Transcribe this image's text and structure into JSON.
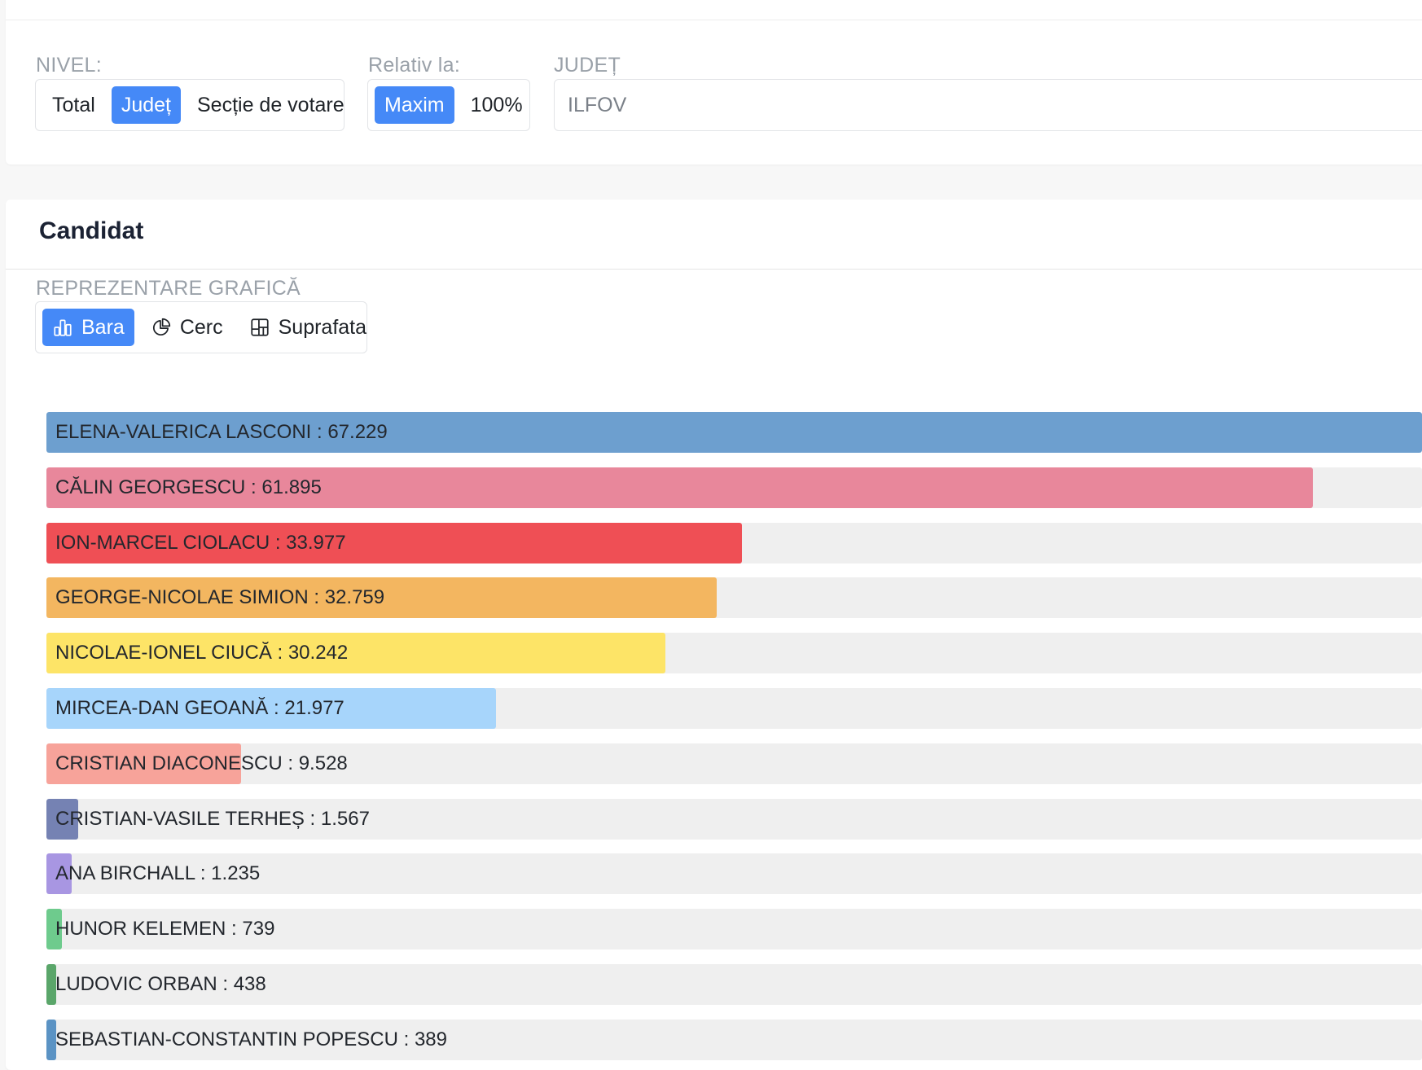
{
  "filters": {
    "nivel": {
      "label": "NIVEL:",
      "options": [
        "Total",
        "Județ",
        "Secție de votare"
      ],
      "selected": "Județ"
    },
    "relativ": {
      "label": "Relativ la:",
      "options": [
        "Maxim",
        "100%"
      ],
      "selected": "Maxim"
    },
    "judet": {
      "label": "JUDEȚ",
      "value": "ILFOV"
    }
  },
  "candidat": {
    "title": "Candidat",
    "representation": {
      "label": "REPREZENTARE GRAFICĂ",
      "options": [
        {
          "label": "Bara",
          "icon": "bar-chart-icon"
        },
        {
          "label": "Cerc",
          "icon": "pie-chart-icon"
        },
        {
          "label": "Suprafata",
          "icon": "treemap-icon"
        }
      ],
      "selected": "Bara"
    }
  },
  "chart_data": {
    "type": "bar",
    "orientation": "horizontal",
    "relative_to": "Maxim",
    "bars": [
      {
        "name": "ELENA-VALERICA LASCONI",
        "value": 67229,
        "display": "67.229",
        "color": "#6d9fcf"
      },
      {
        "name": "CĂLIN GEORGESCU",
        "value": 61895,
        "display": "61.895",
        "color": "#e8879b"
      },
      {
        "name": "ION-MARCEL CIOLACU",
        "value": 33977,
        "display": "33.977",
        "color": "#ef4f55"
      },
      {
        "name": "GEORGE-NICOLAE SIMION",
        "value": 32759,
        "display": "32.759",
        "color": "#f3b660"
      },
      {
        "name": "NICOLAE-IONEL CIUCĂ",
        "value": 30242,
        "display": "30.242",
        "color": "#fde467"
      },
      {
        "name": "MIRCEA-DAN GEOANĂ",
        "value": 21977,
        "display": "21.977",
        "color": "#a7d5fb"
      },
      {
        "name": "CRISTIAN DIACONESCU",
        "value": 9528,
        "display": "9.528",
        "color": "#f7a39a"
      },
      {
        "name": "CRISTIAN-VASILE TERHEȘ",
        "value": 1567,
        "display": "1.567",
        "color": "#7582b3"
      },
      {
        "name": "ANA BIRCHALL",
        "value": 1235,
        "display": "1.235",
        "color": "#a896e2"
      },
      {
        "name": "HUNOR KELEMEN",
        "value": 739,
        "display": "739",
        "color": "#6ecb8d"
      },
      {
        "name": "LUDOVIC ORBAN",
        "value": 438,
        "display": "438",
        "color": "#5aa66a"
      },
      {
        "name": "SEBASTIAN-CONSTANTIN POPESCU",
        "value": 389,
        "display": "389",
        "color": "#5b93c4"
      }
    ]
  }
}
